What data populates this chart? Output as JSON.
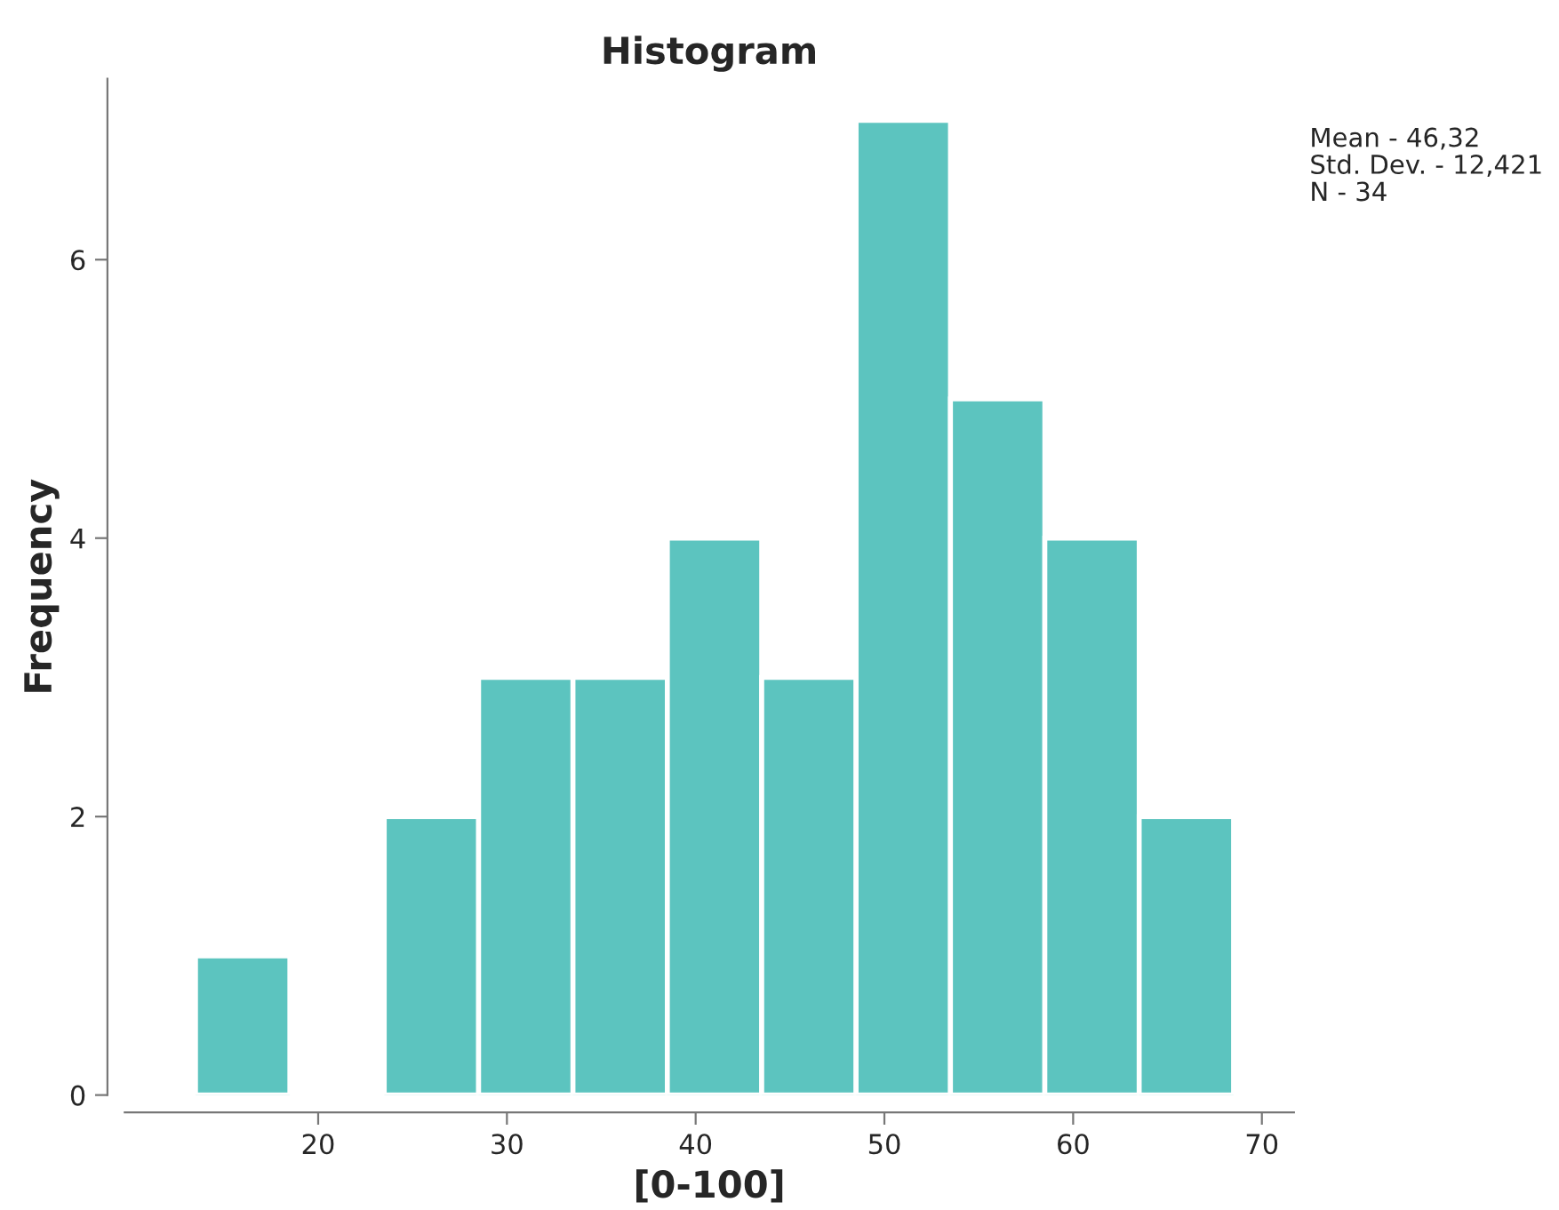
{
  "chart_data": {
    "type": "histogram",
    "title": "Histogram",
    "xlabel": "[0-100]",
    "ylabel": "Frequency",
    "bins": [
      13.5,
      18.5,
      23.5,
      28.5,
      33.5,
      38.5,
      43.5,
      48.5,
      53.5,
      58.5,
      63.5,
      68.5
    ],
    "values": [
      1,
      0,
      2,
      3,
      3,
      4,
      3,
      7,
      5,
      4,
      2
    ],
    "color": "#5cc4bf",
    "xlim": [
      9.75,
      71.7
    ],
    "xticks": [
      20,
      30,
      40,
      50,
      60,
      70
    ],
    "ylim": [
      0,
      7.3
    ],
    "yticks": [
      0,
      2,
      4,
      6
    ],
    "grid": false,
    "legend": false,
    "annotations": [
      "Mean - 46,32",
      "Std. Dev. - 12,421",
      "N - 34"
    ]
  }
}
